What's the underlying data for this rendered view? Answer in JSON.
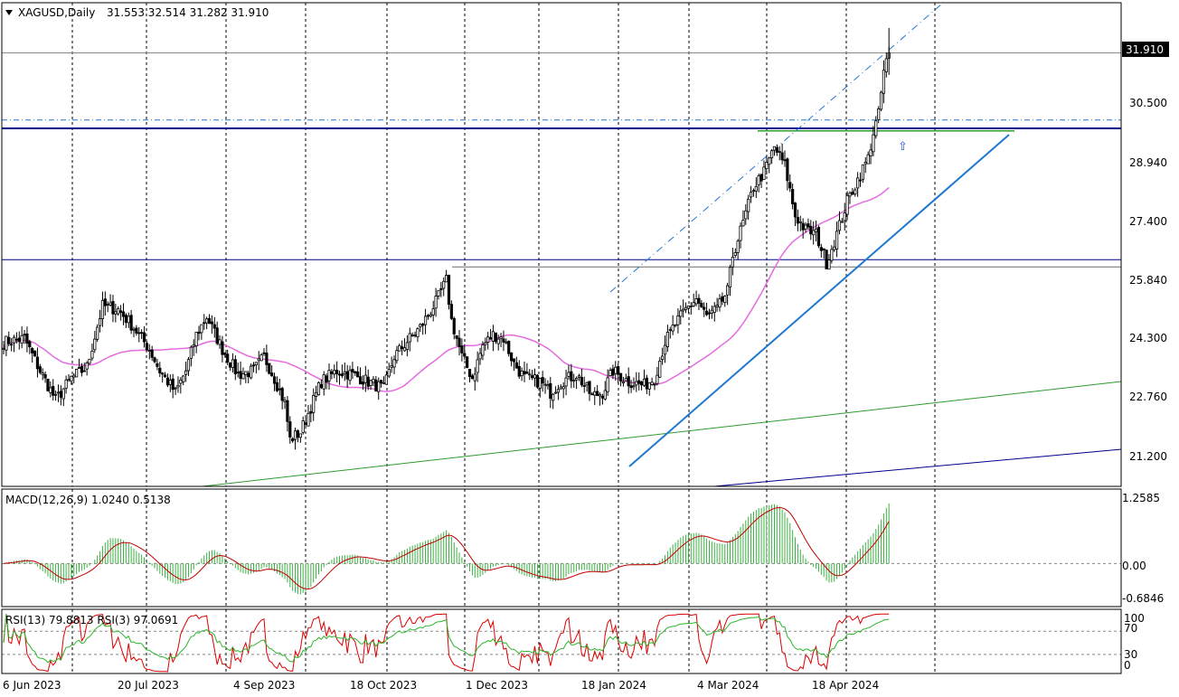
{
  "chart_data": {
    "type": "candlestick",
    "symbol": "XAGUSD",
    "timeframe": "Daily",
    "header": {
      "title": "XAGUSD,Daily",
      "ohlc": "31.553 32.514 31.282 31.910"
    },
    "last_price": 31.91,
    "last_price_label": "31.910",
    "price_axis": {
      "ticks": [
        "30.500",
        "28.940",
        "27.400",
        "25.840",
        "24.300",
        "22.760",
        "21.200"
      ],
      "ylim": [
        19.9,
        33.3
      ]
    },
    "x_axis": {
      "tick_labels": [
        "6 Jun 2023",
        "20 Jul 2023",
        "4 Sep 2023",
        "18 Oct 2023",
        "1 Dec 2023",
        "18 Jan 2024",
        "4 Mar 2024",
        "18 Apr 2024"
      ]
    },
    "price_series_approx": [
      [
        0,
        23.9
      ],
      [
        8,
        24.0
      ],
      [
        14,
        23.1
      ],
      [
        20,
        22.3
      ],
      [
        26,
        22.9
      ],
      [
        32,
        23.2
      ],
      [
        38,
        24.9
      ],
      [
        44,
        24.8
      ],
      [
        50,
        24.3
      ],
      [
        56,
        23.7
      ],
      [
        60,
        23.1
      ],
      [
        66,
        22.5
      ],
      [
        70,
        23.1
      ],
      [
        74,
        24.1
      ],
      [
        78,
        24.6
      ],
      [
        84,
        23.7
      ],
      [
        90,
        23.0
      ],
      [
        96,
        23.1
      ],
      [
        100,
        23.5
      ],
      [
        104,
        22.9
      ],
      [
        108,
        22.2
      ],
      [
        110,
        21.2
      ],
      [
        114,
        21.4
      ],
      [
        118,
        22.1
      ],
      [
        122,
        22.8
      ],
      [
        128,
        23.1
      ],
      [
        134,
        23.0
      ],
      [
        140,
        22.8
      ],
      [
        146,
        22.6
      ],
      [
        150,
        23.5
      ],
      [
        156,
        24.0
      ],
      [
        160,
        24.3
      ],
      [
        166,
        25.0
      ],
      [
        170,
        25.6
      ],
      [
        172,
        24.5
      ],
      [
        176,
        23.5
      ],
      [
        180,
        22.9
      ],
      [
        184,
        23.8
      ],
      [
        188,
        24.1
      ],
      [
        192,
        24.0
      ],
      [
        196,
        23.3
      ],
      [
        200,
        22.9
      ],
      [
        206,
        22.8
      ],
      [
        210,
        22.5
      ],
      [
        214,
        22.8
      ],
      [
        220,
        23.0
      ],
      [
        226,
        22.4
      ],
      [
        230,
        22.5
      ],
      [
        234,
        23.1
      ],
      [
        240,
        22.8
      ],
      [
        246,
        22.7
      ],
      [
        250,
        22.9
      ],
      [
        254,
        23.9
      ],
      [
        258,
        24.4
      ],
      [
        262,
        24.8
      ],
      [
        266,
        25.1
      ],
      [
        270,
        24.6
      ],
      [
        274,
        24.8
      ],
      [
        278,
        25.3
      ],
      [
        280,
        26.3
      ],
      [
        284,
        27.2
      ],
      [
        288,
        28.2
      ],
      [
        292,
        28.6
      ],
      [
        296,
        29.3
      ],
      [
        300,
        28.8
      ],
      [
        304,
        27.4
      ],
      [
        308,
        27.0
      ],
      [
        312,
        26.9
      ],
      [
        316,
        26.1
      ],
      [
        320,
        26.9
      ],
      [
        324,
        27.8
      ],
      [
        328,
        28.4
      ],
      [
        332,
        29.0
      ],
      [
        334,
        29.7
      ],
      [
        336,
        30.2
      ],
      [
        338,
        31.4
      ],
      [
        340,
        31.9
      ]
    ],
    "horizontal_levels": [
      {
        "value": 31.91,
        "style": "solid",
        "color": "#8a8a8a"
      },
      {
        "value": 30.05,
        "style": "dash-dot",
        "color": "#1f78d1"
      },
      {
        "value": 29.82,
        "style": "solid-thick",
        "color": "#00008b"
      },
      {
        "value": 29.75,
        "style": "segment",
        "color": "#2e9b2e"
      },
      {
        "value": 26.18,
        "style": "solid",
        "color": "#000080"
      },
      {
        "value": 25.98,
        "style": "segment",
        "color": "#6a6a6a"
      }
    ],
    "moving_average_color": "#e56be0",
    "macd": {
      "label": "MACD(12,26,9) 1.0240 0.5138",
      "ticks": [
        "1.2585",
        "0.00",
        "-0.6846"
      ],
      "ylim": [
        -0.78,
        1.35
      ],
      "hist_color": "#3cb043",
      "signal_color": "#c00000"
    },
    "rsi": {
      "label": "RSI(13) 79.8813  RSI(3) 97.0691",
      "ticks": [
        "100",
        "70",
        "30",
        "0"
      ],
      "ylim": [
        -3,
        108
      ],
      "rsi3_color": "#dd0000",
      "rsi13_color": "#2bb52b"
    }
  }
}
